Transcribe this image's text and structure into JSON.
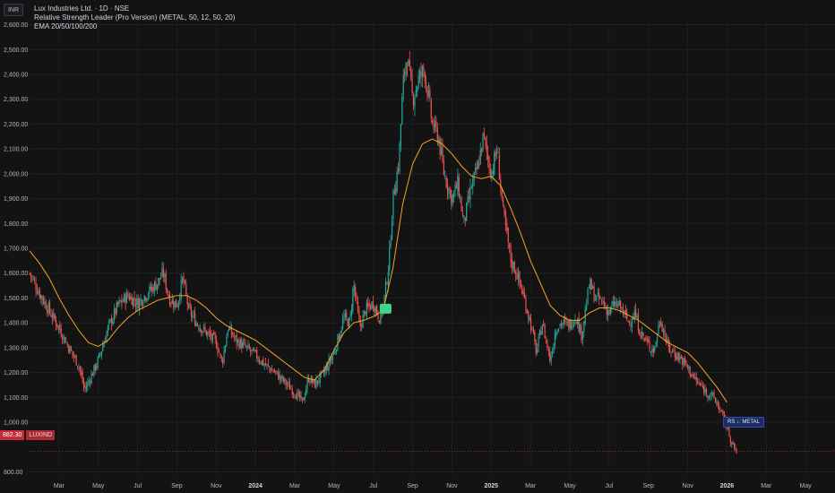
{
  "header": {
    "currency": "INR",
    "title_line": "Lux Industries Ltd. · 1D · NSE",
    "indicator_line": "Relative Strength Leader (Pro Version) (METAL, 50, 12, 50, 20)",
    "ema_line": "EMA 20/50/100/200"
  },
  "price_tag": {
    "value": "882.30",
    "symbol": "LUXIND"
  },
  "rs_label": "RS ↓: METAL",
  "colors": {
    "up": "#26a69a",
    "down": "#ef5350",
    "ema": "#f5a623",
    "background": "#131313"
  },
  "chart_data": {
    "type": "candlestick",
    "y_ticks": [
      "800.00",
      "1,000.00",
      "1,100.00",
      "1,200.00",
      "1,300.00",
      "1,400.00",
      "1,500.00",
      "1,600.00",
      "1,700.00",
      "1,800.00",
      "1,900.00",
      "2,000.00",
      "2,100.00",
      "2,200.00",
      "2,300.00",
      "2,400.00",
      "2,500.00",
      "2,600.00"
    ],
    "y_tick_values": [
      800,
      1000,
      1100,
      1200,
      1300,
      1400,
      1500,
      1600,
      1700,
      1800,
      1900,
      2000,
      2100,
      2200,
      2300,
      2400,
      2500,
      2600
    ],
    "ylim": [
      780,
      2620
    ],
    "x_ticks": [
      {
        "label": "Mar",
        "t": 2,
        "bold": false
      },
      {
        "label": "May",
        "t": 4,
        "bold": false
      },
      {
        "label": "Jul",
        "t": 6,
        "bold": false
      },
      {
        "label": "Sep",
        "t": 8,
        "bold": false
      },
      {
        "label": "Nov",
        "t": 10,
        "bold": false
      },
      {
        "label": "2024",
        "t": 12,
        "bold": true
      },
      {
        "label": "Mar",
        "t": 14,
        "bold": false
      },
      {
        "label": "May",
        "t": 16,
        "bold": false
      },
      {
        "label": "Jul",
        "t": 18,
        "bold": false
      },
      {
        "label": "Sep",
        "t": 20,
        "bold": false
      },
      {
        "label": "Nov",
        "t": 22,
        "bold": false
      },
      {
        "label": "2025",
        "t": 24,
        "bold": true
      },
      {
        "label": "Mar",
        "t": 26,
        "bold": false
      },
      {
        "label": "May",
        "t": 28,
        "bold": false
      },
      {
        "label": "Jul",
        "t": 30,
        "bold": false
      },
      {
        "label": "Sep",
        "t": 32,
        "bold": false
      },
      {
        "label": "Nov",
        "t": 34,
        "bold": false
      },
      {
        "label": "2026",
        "t": 36,
        "bold": true
      },
      {
        "label": "Mar",
        "t": 38,
        "bold": false
      },
      {
        "label": "May",
        "t": 40,
        "bold": false
      }
    ],
    "xlim": [
      0.5,
      41.5
    ],
    "close_path": [
      [
        0.5,
        1600
      ],
      [
        1.0,
        1520
      ],
      [
        1.5,
        1450
      ],
      [
        2.0,
        1380
      ],
      [
        2.5,
        1300
      ],
      [
        3.0,
        1230
      ],
      [
        3.3,
        1130
      ],
      [
        3.6,
        1180
      ],
      [
        4.0,
        1250
      ],
      [
        4.5,
        1380
      ],
      [
        5.0,
        1470
      ],
      [
        5.5,
        1510
      ],
      [
        6.0,
        1480
      ],
      [
        6.5,
        1520
      ],
      [
        7.0,
        1560
      ],
      [
        7.3,
        1600
      ],
      [
        7.6,
        1500
      ],
      [
        8.0,
        1470
      ],
      [
        8.3,
        1580
      ],
      [
        8.6,
        1450
      ],
      [
        9.0,
        1400
      ],
      [
        9.5,
        1360
      ],
      [
        10.0,
        1320
      ],
      [
        10.3,
        1240
      ],
      [
        10.6,
        1380
      ],
      [
        11.0,
        1330
      ],
      [
        11.5,
        1300
      ],
      [
        12.0,
        1270
      ],
      [
        12.5,
        1230
      ],
      [
        13.0,
        1200
      ],
      [
        13.5,
        1160
      ],
      [
        14.0,
        1120
      ],
      [
        14.4,
        1080
      ],
      [
        14.7,
        1180
      ],
      [
        15.0,
        1150
      ],
      [
        15.5,
        1200
      ],
      [
        16.0,
        1280
      ],
      [
        16.5,
        1420
      ],
      [
        16.8,
        1400
      ],
      [
        17.0,
        1560
      ],
      [
        17.3,
        1380
      ],
      [
        17.6,
        1450
      ],
      [
        18.0,
        1480
      ],
      [
        18.3,
        1420
      ],
      [
        18.5,
        1460
      ],
      [
        18.8,
        1650
      ],
      [
        19.0,
        1900
      ],
      [
        19.3,
        2050
      ],
      [
        19.5,
        2350
      ],
      [
        19.7,
        2480
      ],
      [
        20.0,
        2300
      ],
      [
        20.3,
        2380
      ],
      [
        20.6,
        2420
      ],
      [
        21.0,
        2200
      ],
      [
        21.3,
        2150
      ],
      [
        21.6,
        2000
      ],
      [
        22.0,
        1900
      ],
      [
        22.3,
        1960
      ],
      [
        22.6,
        1800
      ],
      [
        23.0,
        1950
      ],
      [
        23.3,
        2020
      ],
      [
        23.6,
        2150
      ],
      [
        24.0,
        2000
      ],
      [
        24.3,
        2100
      ],
      [
        24.6,
        1850
      ],
      [
        25.0,
        1650
      ],
      [
        25.3,
        1600
      ],
      [
        25.6,
        1520
      ],
      [
        26.0,
        1400
      ],
      [
        26.3,
        1280
      ],
      [
        26.6,
        1400
      ],
      [
        27.0,
        1250
      ],
      [
        27.3,
        1380
      ],
      [
        27.6,
        1400
      ],
      [
        28.0,
        1390
      ],
      [
        28.3,
        1430
      ],
      [
        28.6,
        1350
      ],
      [
        29.0,
        1560
      ],
      [
        29.3,
        1500
      ],
      [
        29.6,
        1490
      ],
      [
        30.0,
        1440
      ],
      [
        30.3,
        1480
      ],
      [
        30.6,
        1460
      ],
      [
        31.0,
        1400
      ],
      [
        31.3,
        1440
      ],
      [
        31.6,
        1360
      ],
      [
        32.0,
        1310
      ],
      [
        32.3,
        1290
      ],
      [
        32.6,
        1420
      ],
      [
        33.0,
        1300
      ],
      [
        33.3,
        1280
      ],
      [
        33.6,
        1260
      ],
      [
        34.0,
        1220
      ],
      [
        34.3,
        1180
      ],
      [
        34.6,
        1150
      ],
      [
        35.0,
        1120
      ],
      [
        35.3,
        1100
      ],
      [
        35.6,
        1060
      ],
      [
        36.0,
        980
      ],
      [
        36.3,
        900
      ],
      [
        36.5,
        882.3
      ]
    ],
    "ema_series": [
      [
        0.5,
        1690
      ],
      [
        1.0,
        1640
      ],
      [
        1.5,
        1580
      ],
      [
        2.0,
        1500
      ],
      [
        2.5,
        1430
      ],
      [
        3.0,
        1370
      ],
      [
        3.5,
        1320
      ],
      [
        4.0,
        1305
      ],
      [
        4.5,
        1330
      ],
      [
        5.0,
        1380
      ],
      [
        5.5,
        1420
      ],
      [
        6.0,
        1450
      ],
      [
        6.5,
        1470
      ],
      [
        7.0,
        1490
      ],
      [
        7.5,
        1500
      ],
      [
        8.0,
        1510
      ],
      [
        8.5,
        1510
      ],
      [
        9.0,
        1490
      ],
      [
        9.5,
        1460
      ],
      [
        10.0,
        1420
      ],
      [
        10.5,
        1390
      ],
      [
        11.0,
        1370
      ],
      [
        11.5,
        1350
      ],
      [
        12.0,
        1330
      ],
      [
        12.5,
        1300
      ],
      [
        13.0,
        1270
      ],
      [
        13.5,
        1240
      ],
      [
        14.0,
        1210
      ],
      [
        14.5,
        1180
      ],
      [
        15.0,
        1170
      ],
      [
        15.5,
        1210
      ],
      [
        16.0,
        1290
      ],
      [
        16.5,
        1360
      ],
      [
        17.0,
        1400
      ],
      [
        17.5,
        1410
      ],
      [
        18.0,
        1425
      ],
      [
        18.5,
        1450
      ],
      [
        19.0,
        1620
      ],
      [
        19.5,
        1880
      ],
      [
        20.0,
        2040
      ],
      [
        20.5,
        2120
      ],
      [
        21.0,
        2140
      ],
      [
        21.5,
        2120
      ],
      [
        22.0,
        2080
      ],
      [
        22.5,
        2030
      ],
      [
        23.0,
        1990
      ],
      [
        23.5,
        1980
      ],
      [
        24.0,
        1990
      ],
      [
        24.5,
        1950
      ],
      [
        25.0,
        1860
      ],
      [
        25.5,
        1760
      ],
      [
        26.0,
        1650
      ],
      [
        26.5,
        1560
      ],
      [
        27.0,
        1470
      ],
      [
        27.5,
        1430
      ],
      [
        28.0,
        1410
      ],
      [
        28.5,
        1410
      ],
      [
        29.0,
        1440
      ],
      [
        29.5,
        1460
      ],
      [
        30.0,
        1460
      ],
      [
        30.5,
        1450
      ],
      [
        31.0,
        1430
      ],
      [
        31.5,
        1410
      ],
      [
        32.0,
        1380
      ],
      [
        32.5,
        1350
      ],
      [
        33.0,
        1320
      ],
      [
        33.5,
        1300
      ],
      [
        34.0,
        1280
      ],
      [
        34.5,
        1240
      ],
      [
        35.0,
        1190
      ],
      [
        35.5,
        1140
      ],
      [
        36.0,
        1080
      ]
    ],
    "signal_marker": {
      "t": 18.6,
      "value": 1455
    },
    "last_close": 882.3
  }
}
